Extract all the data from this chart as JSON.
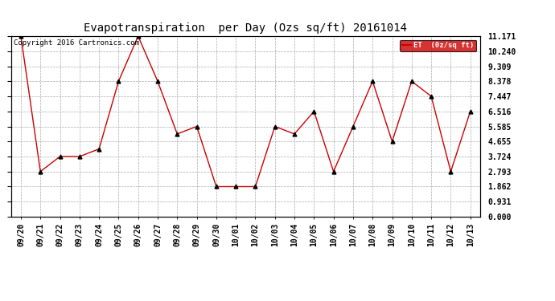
{
  "title": "Evapotranspiration  per Day (Ozs sq/ft) 20161014",
  "copyright_text": "Copyright 2016 Cartronics.com",
  "legend_label": "ET  (0z/sq ft)",
  "x_labels": [
    "09/20",
    "09/21",
    "09/22",
    "09/23",
    "09/24",
    "09/25",
    "09/26",
    "09/27",
    "09/28",
    "09/29",
    "09/30",
    "10/01",
    "10/02",
    "10/03",
    "10/04",
    "10/05",
    "10/06",
    "10/07",
    "10/08",
    "10/09",
    "10/10",
    "10/11",
    "10/12",
    "10/13"
  ],
  "y_values": [
    11.171,
    2.793,
    3.724,
    3.724,
    4.191,
    8.378,
    11.171,
    8.378,
    5.12,
    5.585,
    1.862,
    1.862,
    1.862,
    5.585,
    5.12,
    6.516,
    2.793,
    5.585,
    8.378,
    4.655,
    8.378,
    7.447,
    2.793,
    6.516
  ],
  "y_ticks": [
    0.0,
    0.931,
    1.862,
    2.793,
    3.724,
    4.655,
    5.585,
    6.516,
    7.447,
    8.378,
    9.309,
    10.24,
    11.171
  ],
  "y_min": 0.0,
  "y_max": 11.171,
  "line_color": "#cc0000",
  "marker_color": "#000000",
  "grid_color": "#aaaaaa",
  "background_color": "#ffffff",
  "legend_bg": "#cc0000",
  "legend_text_color": "#ffffff",
  "title_fontsize": 10,
  "tick_fontsize": 7,
  "copyright_fontsize": 6.5
}
